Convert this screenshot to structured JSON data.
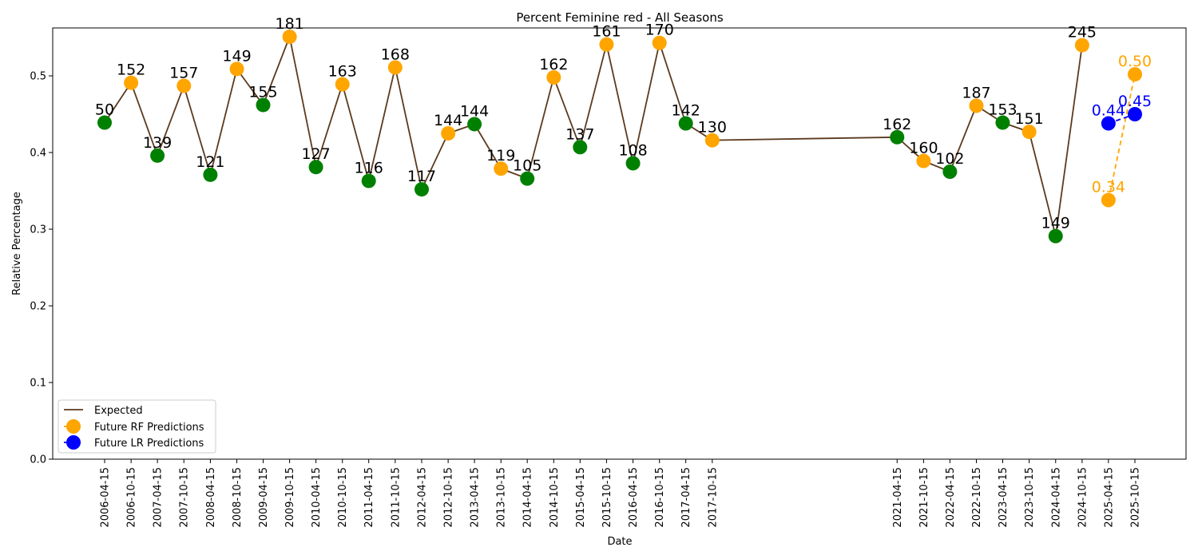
{
  "chart_data": {
    "type": "line",
    "title": "Percent Feminine red - All Seasons",
    "xlabel": "Date",
    "ylabel": "Relative Percentage",
    "ylim": [
      0.0,
      0.5625
    ],
    "yticks": [
      "0.0",
      "0.1",
      "0.2",
      "0.3",
      "0.4",
      "0.5"
    ],
    "grid": false,
    "legend_position": "lower-left",
    "x": [
      "2006-04-15",
      "2006-10-15",
      "2007-04-15",
      "2007-10-15",
      "2008-04-15",
      "2008-10-15",
      "2009-04-15",
      "2009-10-15",
      "2010-04-15",
      "2010-10-15",
      "2011-04-15",
      "2011-10-15",
      "2012-04-15",
      "2012-10-15",
      "2013-04-15",
      "2013-10-15",
      "2014-04-15",
      "2014-10-15",
      "2015-04-15",
      "2015-10-15",
      "2016-04-15",
      "2016-10-15",
      "2017-04-15",
      "2017-10-15",
      "2021-04-15",
      "2021-10-15",
      "2022-04-15",
      "2022-10-15",
      "2023-04-15",
      "2023-10-15",
      "2024-04-15",
      "2024-10-15",
      "2025-04-15",
      "2025-10-15"
    ],
    "series": [
      {
        "name": "Expected",
        "color": "#5c3a1e",
        "x": [
          "2006-04-15",
          "2006-10-15",
          "2007-04-15",
          "2007-10-15",
          "2008-04-15",
          "2008-10-15",
          "2009-04-15",
          "2009-10-15",
          "2010-04-15",
          "2010-10-15",
          "2011-04-15",
          "2011-10-15",
          "2012-04-15",
          "2012-10-15",
          "2013-04-15",
          "2013-10-15",
          "2014-04-15",
          "2014-10-15",
          "2015-04-15",
          "2015-10-15",
          "2016-04-15",
          "2016-10-15",
          "2017-04-15",
          "2017-10-15",
          "2021-04-15",
          "2021-10-15",
          "2022-04-15",
          "2022-10-15",
          "2023-04-15",
          "2023-10-15",
          "2024-04-15",
          "2024-10-15"
        ],
        "values": [
          0.439,
          0.491,
          0.396,
          0.487,
          0.371,
          0.509,
          0.462,
          0.551,
          0.381,
          0.489,
          0.363,
          0.511,
          0.352,
          0.425,
          0.437,
          0.379,
          0.366,
          0.498,
          0.407,
          0.541,
          0.386,
          0.543,
          0.438,
          0.416,
          0.42,
          0.389,
          0.375,
          0.461,
          0.439,
          0.427,
          0.291,
          0.54
        ],
        "point_colors": [
          "green",
          "orange",
          "green",
          "orange",
          "green",
          "orange",
          "green",
          "orange",
          "green",
          "orange",
          "green",
          "orange",
          "green",
          "orange",
          "green",
          "orange",
          "green",
          "orange",
          "green",
          "orange",
          "green",
          "orange",
          "green",
          "orange",
          "green",
          "orange",
          "green",
          "orange",
          "green",
          "orange",
          "green",
          "orange"
        ],
        "point_labels": [
          "50",
          "152",
          "139",
          "157",
          "121",
          "149",
          "155",
          "181",
          "127",
          "163",
          "116",
          "168",
          "117",
          "144",
          "144",
          "119",
          "105",
          "162",
          "137",
          "161",
          "108",
          "170",
          "142",
          "130",
          "162",
          "160",
          "102",
          "187",
          "153",
          "151",
          "149",
          "245"
        ]
      },
      {
        "name": "Future RF Predictions",
        "color": "orange",
        "x": [
          "2025-04-15",
          "2025-10-15"
        ],
        "values": [
          0.338,
          0.502
        ],
        "point_labels": [
          "0.34",
          "0.50"
        ]
      },
      {
        "name": "Future LR Predictions",
        "color": "blue",
        "x": [
          "2025-04-15",
          "2025-10-15"
        ],
        "values": [
          0.438,
          0.45
        ],
        "point_labels": [
          "0.44",
          "0.45"
        ]
      }
    ]
  }
}
